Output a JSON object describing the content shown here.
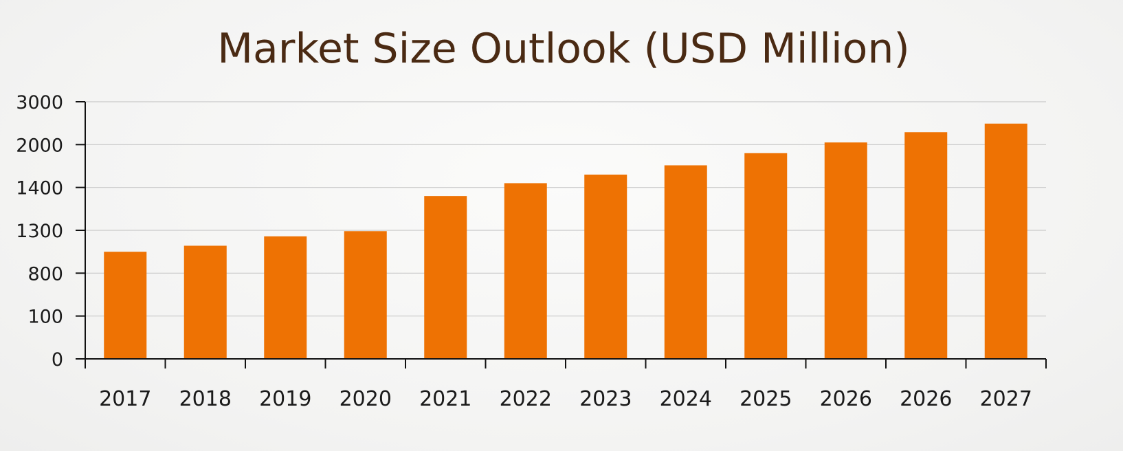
{
  "chart_data": {
    "type": "bar",
    "title": "Market Size Outlook (USD Million)",
    "xlabel": "",
    "ylabel": "",
    "categories": [
      "2017",
      "2018",
      "2019",
      "2020",
      "2021",
      "2022",
      "2023",
      "2024",
      "2025",
      "2026",
      "2026",
      "2027"
    ],
    "y_tick_labels": [
      "0",
      "100",
      "800",
      "1300",
      "1400",
      "2000",
      "3000"
    ],
    "values": [
      1050,
      1120,
      1230,
      1290,
      1380,
      1460,
      1580,
      1710,
      1880,
      2050,
      2290,
      2490
    ],
    "ylim": [
      0,
      3000
    ],
    "grid": true,
    "legend": "none",
    "bar_color": "#ee7203"
  }
}
